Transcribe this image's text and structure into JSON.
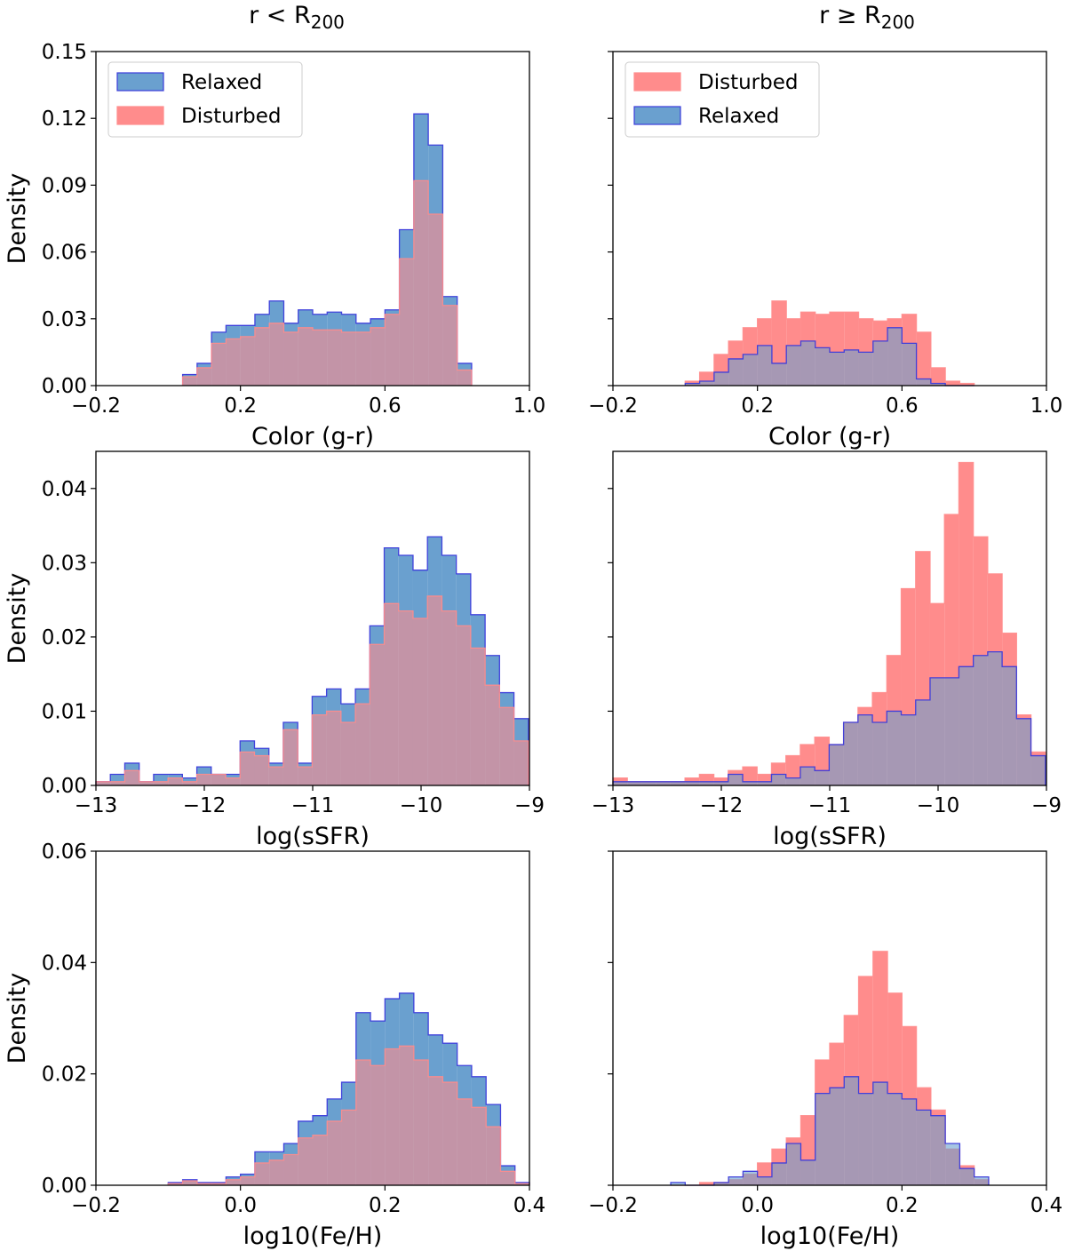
{
  "column_titles": [
    {
      "base": "r < R",
      "sub": "200"
    },
    {
      "base": "r ≥ R",
      "sub": "200"
    }
  ],
  "colors": {
    "relaxed_fill": "#6aa0cf",
    "relaxed_edge": "#3b3bdb",
    "disturbed_fill": "#ff8c8c",
    "disturbed_edge": "#ff8c8c",
    "overlap_inner": "#b06a8a",
    "overlap_outer": "#8b7fb0"
  },
  "chart_data": [
    {
      "type": "histogram",
      "row": 0,
      "col": 0,
      "xlabel": "Color (g-r)",
      "ylabel": "Density",
      "xlim": [
        -0.2,
        1.0
      ],
      "ylim": [
        0,
        0.15
      ],
      "xticks": [
        -0.2,
        0.2,
        0.6,
        1.0
      ],
      "xtick_labels": [
        "−0.2",
        "0.2",
        "0.6",
        "1.0"
      ],
      "yticks": [
        0,
        0.03,
        0.06,
        0.09,
        0.12,
        0.15
      ],
      "ytick_labels": [
        "0.00",
        "0.03",
        "0.06",
        "0.09",
        "0.12",
        "0.15"
      ],
      "show_ytick_labels": true,
      "legend": {
        "position": "upper-left",
        "entries": [
          "Relaxed",
          "Disturbed"
        ]
      },
      "bin_start": 0.04,
      "bin_width": 0.04,
      "series": [
        {
          "name": "Relaxed",
          "values": [
            0.005,
            0.01,
            0.024,
            0.027,
            0.027,
            0.032,
            0.038,
            0.028,
            0.034,
            0.032,
            0.033,
            0.032,
            0.028,
            0.03,
            0.034,
            0.07,
            0.122,
            0.108,
            0.04,
            0.01
          ]
        },
        {
          "name": "Disturbed",
          "values": [
            0.004,
            0.008,
            0.019,
            0.021,
            0.022,
            0.026,
            0.028,
            0.024,
            0.026,
            0.025,
            0.025,
            0.024,
            0.024,
            0.026,
            0.032,
            0.057,
            0.092,
            0.077,
            0.036,
            0.007
          ]
        }
      ]
    },
    {
      "type": "histogram",
      "row": 0,
      "col": 1,
      "xlabel": "Color (g-r)",
      "ylabel": "",
      "xlim": [
        -0.2,
        1.0
      ],
      "ylim": [
        0,
        0.15
      ],
      "xticks": [
        -0.2,
        0.2,
        0.6,
        1.0
      ],
      "xtick_labels": [
        "−0.2",
        "0.2",
        "0.6",
        "1.0"
      ],
      "yticks": [
        0,
        0.03,
        0.06,
        0.09,
        0.12,
        0.15
      ],
      "ytick_labels": [
        "",
        "",
        "",
        "",
        "",
        ""
      ],
      "show_ytick_labels": false,
      "legend": {
        "position": "upper-left",
        "entries": [
          "Disturbed",
          "Relaxed"
        ]
      },
      "bin_start": 0.0,
      "bin_width": 0.04,
      "series": [
        {
          "name": "Disturbed",
          "values": [
            0.002,
            0.006,
            0.014,
            0.02,
            0.026,
            0.03,
            0.038,
            0.03,
            0.033,
            0.032,
            0.033,
            0.033,
            0.03,
            0.029,
            0.03,
            0.032,
            0.024,
            0.008,
            0.002,
            0.001
          ]
        },
        {
          "name": "Relaxed",
          "values": [
            0.001,
            0.002,
            0.006,
            0.012,
            0.014,
            0.018,
            0.01,
            0.018,
            0.02,
            0.017,
            0.015,
            0.016,
            0.015,
            0.02,
            0.026,
            0.019,
            0.003,
            0.001,
            0.0,
            0.0
          ]
        }
      ]
    },
    {
      "type": "histogram",
      "row": 1,
      "col": 0,
      "xlabel": "log(sSFR)",
      "ylabel": "Density",
      "xlim": [
        -13,
        -9
      ],
      "ylim": [
        0,
        0.045
      ],
      "xticks": [
        -13,
        -12,
        -11,
        -10,
        -9
      ],
      "xtick_labels": [
        "−13",
        "−12",
        "−11",
        "−10",
        "−9"
      ],
      "yticks": [
        0,
        0.01,
        0.02,
        0.03,
        0.04
      ],
      "ytick_labels": [
        "0.00",
        "0.01",
        "0.02",
        "0.03",
        "0.04"
      ],
      "show_ytick_labels": true,
      "legend": null,
      "bin_start": -13.0,
      "bin_width": 0.133,
      "series": [
        {
          "name": "Relaxed",
          "values": [
            0.0005,
            0.0015,
            0.003,
            0.0005,
            0.0015,
            0.0015,
            0.001,
            0.0025,
            0.0015,
            0.0015,
            0.006,
            0.005,
            0.003,
            0.0085,
            0.003,
            0.012,
            0.013,
            0.011,
            0.013,
            0.0215,
            0.032,
            0.031,
            0.029,
            0.0335,
            0.031,
            0.0285,
            0.023,
            0.0175,
            0.0125,
            0.009
          ]
        },
        {
          "name": "Disturbed",
          "values": [
            0.0005,
            0.0005,
            0.002,
            0.0005,
            0.0005,
            0.001,
            0.0005,
            0.0015,
            0.0015,
            0.001,
            0.0045,
            0.004,
            0.0025,
            0.0075,
            0.0025,
            0.0095,
            0.01,
            0.0085,
            0.011,
            0.019,
            0.0245,
            0.0235,
            0.0225,
            0.0255,
            0.0235,
            0.0215,
            0.0185,
            0.0135,
            0.0105,
            0.006
          ]
        }
      ]
    },
    {
      "type": "histogram",
      "row": 1,
      "col": 1,
      "xlabel": "log(sSFR)",
      "ylabel": "",
      "xlim": [
        -13,
        -9
      ],
      "ylim": [
        0,
        0.045
      ],
      "xticks": [
        -13,
        -12,
        -11,
        -10,
        -9
      ],
      "xtick_labels": [
        "−13",
        "−12",
        "−11",
        "−10",
        "−9"
      ],
      "yticks": [
        0,
        0.01,
        0.02,
        0.03,
        0.04
      ],
      "ytick_labels": [
        "",
        "",
        "",
        "",
        ""
      ],
      "show_ytick_labels": false,
      "legend": null,
      "bin_start": -13.0,
      "bin_width": 0.133,
      "series": [
        {
          "name": "Disturbed",
          "values": [
            0.001,
            0.0005,
            0.0005,
            0.0005,
            0.0005,
            0.001,
            0.0015,
            0.001,
            0.002,
            0.0025,
            0.0015,
            0.003,
            0.004,
            0.0055,
            0.0065,
            0.0055,
            0.0085,
            0.0105,
            0.0125,
            0.0175,
            0.0265,
            0.0315,
            0.0245,
            0.0365,
            0.0435,
            0.0335,
            0.0285,
            0.0205,
            0.0095,
            0.0045
          ]
        },
        {
          "name": "Relaxed",
          "values": [
            0.0005,
            0.0005,
            0.0005,
            0.0005,
            0.0005,
            0.0005,
            0.0005,
            0.0005,
            0.0015,
            0.0005,
            0.0005,
            0.0015,
            0.001,
            0.0025,
            0.002,
            0.0055,
            0.0085,
            0.0095,
            0.0085,
            0.01,
            0.0095,
            0.0115,
            0.0145,
            0.0145,
            0.016,
            0.0175,
            0.018,
            0.016,
            0.009,
            0.004
          ]
        }
      ]
    },
    {
      "type": "histogram",
      "row": 2,
      "col": 0,
      "xlabel": "log10(Fe/H)",
      "ylabel": "Density",
      "xlim": [
        -0.2,
        0.4
      ],
      "ylim": [
        0,
        0.06
      ],
      "xticks": [
        -0.2,
        0.0,
        0.2,
        0.4
      ],
      "xtick_labels": [
        "−0.2",
        "0.0",
        "0.2",
        "0.4"
      ],
      "yticks": [
        0,
        0.02,
        0.04,
        0.06
      ],
      "ytick_labels": [
        "0.00",
        "0.02",
        "0.04",
        "0.06"
      ],
      "show_ytick_labels": true,
      "legend": null,
      "bin_start": -0.1,
      "bin_width": 0.02,
      "series": [
        {
          "name": "Relaxed",
          "values": [
            0.0005,
            0.001,
            0.0005,
            0.0005,
            0.0015,
            0.002,
            0.006,
            0.006,
            0.0075,
            0.0115,
            0.0125,
            0.0155,
            0.0185,
            0.031,
            0.0295,
            0.0335,
            0.0345,
            0.031,
            0.027,
            0.0255,
            0.0215,
            0.0195,
            0.0145,
            0.0035,
            0.0005
          ]
        },
        {
          "name": "Disturbed",
          "values": [
            0.0003,
            0.0008,
            0.0003,
            0.0003,
            0.001,
            0.0015,
            0.004,
            0.0045,
            0.0055,
            0.0085,
            0.009,
            0.0115,
            0.0135,
            0.0225,
            0.0215,
            0.0245,
            0.025,
            0.0225,
            0.0195,
            0.0185,
            0.0155,
            0.014,
            0.0105,
            0.0025,
            0.0003
          ]
        }
      ]
    },
    {
      "type": "histogram",
      "row": 2,
      "col": 1,
      "xlabel": "log10(Fe/H)",
      "ylabel": "",
      "xlim": [
        -0.2,
        0.4
      ],
      "ylim": [
        0,
        0.06
      ],
      "xticks": [
        -0.2,
        0.0,
        0.2,
        0.4
      ],
      "xtick_labels": [
        "−0.2",
        "0.0",
        "0.2",
        "0.4"
      ],
      "yticks": [
        0,
        0.02,
        0.04,
        0.06
      ],
      "ytick_labels": [
        "",
        "",
        "",
        ""
      ],
      "show_ytick_labels": false,
      "legend": null,
      "bin_start": -0.12,
      "bin_width": 0.02,
      "series": [
        {
          "name": "Disturbed",
          "values": [
            0.0,
            0.0,
            0.0005,
            0.0005,
            0.001,
            0.002,
            0.004,
            0.0065,
            0.0085,
            0.0125,
            0.0225,
            0.0255,
            0.0305,
            0.0375,
            0.042,
            0.0345,
            0.0285,
            0.0175,
            0.0135,
            0.0065,
            0.0035,
            0.001
          ]
        },
        {
          "name": "Relaxed",
          "values": [
            0.0005,
            0.0,
            0.0,
            0.0005,
            0.0015,
            0.0025,
            0.0015,
            0.004,
            0.0075,
            0.0045,
            0.0165,
            0.0175,
            0.0195,
            0.0165,
            0.0185,
            0.0165,
            0.0155,
            0.0135,
            0.0125,
            0.0075,
            0.003,
            0.0015
          ]
        }
      ]
    }
  ]
}
